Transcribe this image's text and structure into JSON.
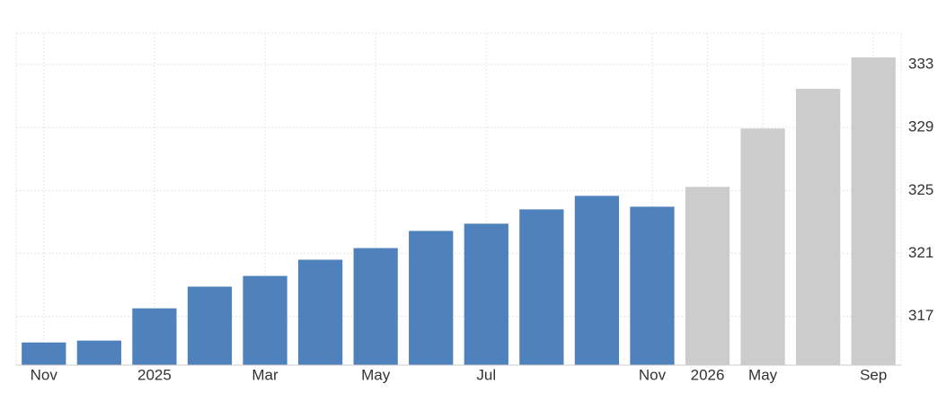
{
  "chart_data": {
    "type": "bar",
    "categories": [
      "Nov",
      null,
      "2025",
      null,
      "Mar",
      null,
      "May",
      null,
      "Jul",
      null,
      null,
      "Nov",
      "2026",
      "May",
      null,
      "Sep"
    ],
    "values": [
      315.34,
      315.46,
      317.51,
      318.89,
      319.57,
      320.6,
      321.34,
      322.43,
      322.89,
      323.8,
      324.66,
      323.97,
      325.23,
      328.94,
      331.46,
      333.46
    ],
    "colors": [
      "#4f81bd",
      "#4f81bd",
      "#4f81bd",
      "#4f81bd",
      "#4f81bd",
      "#4f81bd",
      "#4f81bd",
      "#4f81bd",
      "#4f81bd",
      "#4f81bd",
      "#4f81bd",
      "#4f81bd",
      "#cccccc",
      "#cccccc",
      "#cccccc",
      "#cccccc"
    ],
    "ylim": [
      313.9,
      335
    ],
    "yticks": [
      317,
      321,
      325,
      329,
      333
    ],
    "grid": true
  }
}
